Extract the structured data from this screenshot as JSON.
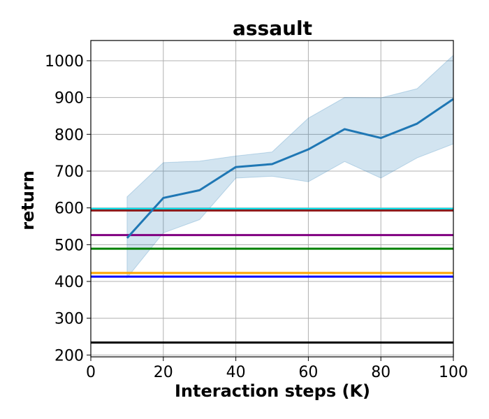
{
  "chart_data": {
    "type": "line",
    "title": "assault",
    "xlabel": "Interaction steps (K)",
    "ylabel": "return",
    "xlim": [
      0,
      100
    ],
    "ylim": [
      195,
      1055
    ],
    "grid": true,
    "xticks": [
      0,
      20,
      40,
      60,
      80,
      100
    ],
    "yticks": [
      200,
      300,
      400,
      500,
      600,
      700,
      800,
      900,
      1000
    ],
    "series": [
      {
        "color": "#1f77b4",
        "x": [
          10,
          20,
          30,
          40,
          50,
          60,
          70,
          80,
          90,
          100
        ],
        "y": [
          518,
          627,
          648,
          711,
          719,
          759,
          814,
          790,
          829,
          896
        ],
        "lower": [
          410,
          532,
          568,
          681,
          686,
          671,
          726,
          681,
          736,
          774
        ],
        "upper": [
          630,
          723,
          727,
          741,
          752,
          844,
          900,
          899,
          924,
          1015
        ]
      }
    ],
    "hlines": [
      {
        "y": 597,
        "color": "#00e5ee"
      },
      {
        "y": 593,
        "color": "#8b1a1a"
      },
      {
        "y": 526,
        "color": "#800080"
      },
      {
        "y": 489,
        "color": "#008000"
      },
      {
        "y": 423,
        "color": "#ffa500"
      },
      {
        "y": 413,
        "color": "#0000ff"
      },
      {
        "y": 234,
        "color": "#000000"
      }
    ]
  }
}
